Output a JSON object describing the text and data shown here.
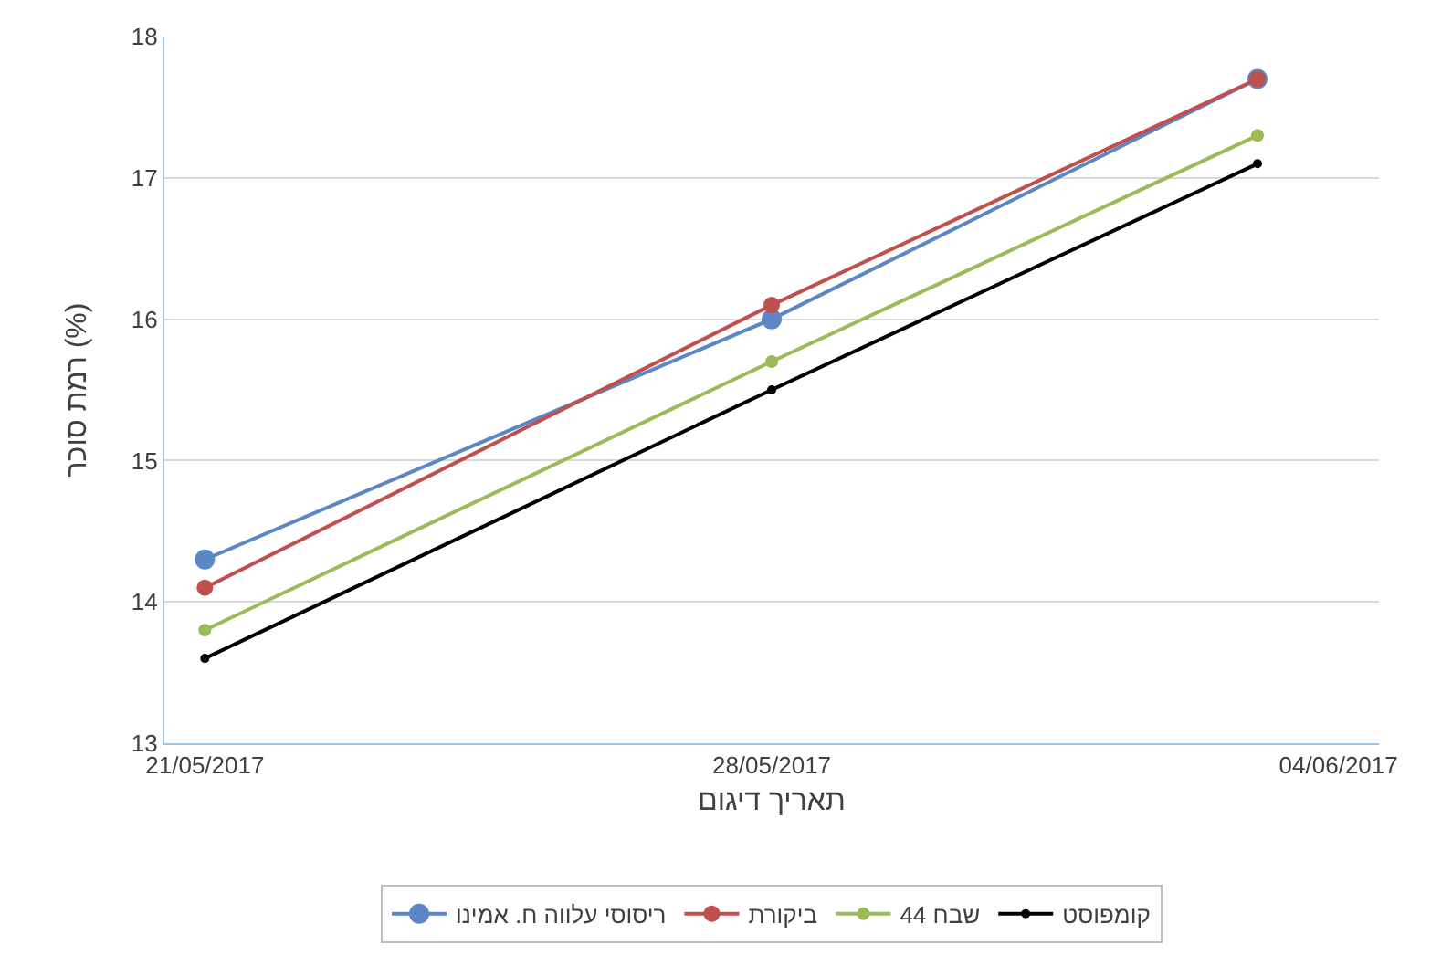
{
  "chart_data": {
    "type": "line",
    "xlabel": "תאריך דיגום",
    "ylabel": "רמת סוכר (%)",
    "x": [
      "2017-05-21",
      "2017-05-28",
      "2017-06-03"
    ],
    "series": [
      {
        "name": "ריסוסי עלווה ח. אמינו",
        "color": "#5b87c5",
        "values": [
          14.3,
          16.0,
          17.7
        ]
      },
      {
        "name": "ביקורת",
        "color": "#c0504d",
        "values": [
          14.1,
          16.1,
          17.7
        ]
      },
      {
        "name": "שבח 44",
        "color": "#9bbb59",
        "values": [
          13.8,
          15.7,
          17.3
        ]
      },
      {
        "name": "קומפוסט",
        "color": "#000000",
        "values": [
          13.6,
          15.5,
          17.1
        ]
      }
    ],
    "xlim": [
      "2017-05-20T12:00",
      "2017-06-04T12:00"
    ],
    "xticks": [
      {
        "value": "2017-05-21",
        "label": "21/05/2017"
      },
      {
        "value": "2017-05-28",
        "label": "28/05/2017"
      },
      {
        "value": "2017-06-04",
        "label": "04/06/2017"
      }
    ],
    "ylim": [
      13,
      18
    ],
    "yticks": [
      13,
      14,
      15,
      16,
      17,
      18
    ],
    "grid": "y",
    "legend": "bottom",
    "marker": "circle",
    "line_style": "solid"
  }
}
